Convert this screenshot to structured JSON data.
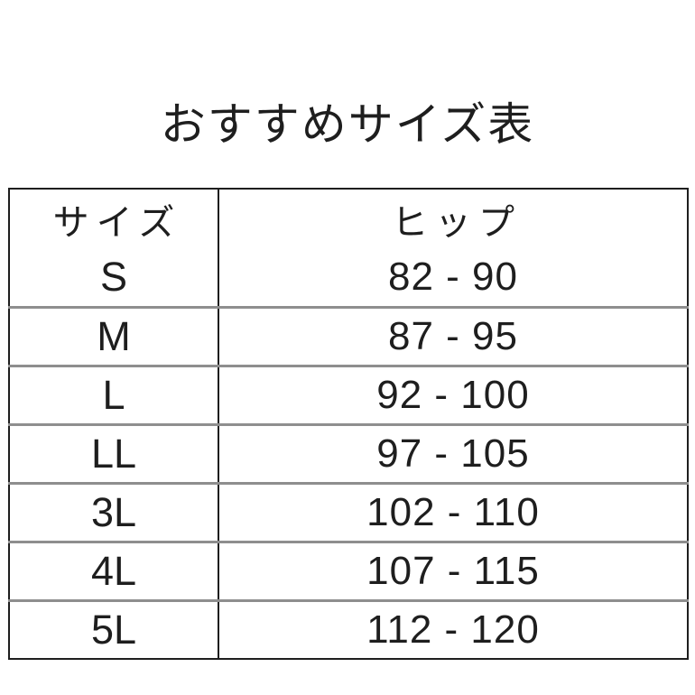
{
  "page": {
    "title": "おすすめサイズ表"
  },
  "table": {
    "columns": [
      {
        "label": "サイズ"
      },
      {
        "label": "ヒップ"
      }
    ],
    "rows": [
      {
        "size": "S",
        "hip": "82 - 90"
      },
      {
        "size": "M",
        "hip": "87 - 95"
      },
      {
        "size": "L",
        "hip": "92 - 100"
      },
      {
        "size": "LL",
        "hip": "97 - 105"
      },
      {
        "size": "3L",
        "hip": "102 - 110"
      },
      {
        "size": "4L",
        "hip": "107 - 115"
      },
      {
        "size": "5L",
        "hip": "112 - 120"
      }
    ]
  },
  "chart_data": {
    "type": "table",
    "title": "おすすめサイズ表",
    "columns": [
      "サイズ",
      "ヒップ"
    ],
    "rows": [
      [
        "S",
        "82 - 90"
      ],
      [
        "M",
        "87 - 95"
      ],
      [
        "L",
        "92 - 100"
      ],
      [
        "LL",
        "97 - 105"
      ],
      [
        "3L",
        "102 - 110"
      ],
      [
        "4L",
        "107 - 115"
      ],
      [
        "5L",
        "112 - 120"
      ]
    ],
    "hip_ranges_numeric": [
      {
        "size": "S",
        "hip_min": 82,
        "hip_max": 90
      },
      {
        "size": "M",
        "hip_min": 87,
        "hip_max": 95
      },
      {
        "size": "L",
        "hip_min": 92,
        "hip_max": 100
      },
      {
        "size": "LL",
        "hip_min": 97,
        "hip_max": 105
      },
      {
        "size": "3L",
        "hip_min": 102,
        "hip_max": 110
      },
      {
        "size": "4L",
        "hip_min": 107,
        "hip_max": 115
      },
      {
        "size": "5L",
        "hip_min": 112,
        "hip_max": 120
      }
    ]
  },
  "colors": {
    "background": "#ffffff",
    "text": "#1e1e1e",
    "outer_border": "#1e1e1e",
    "column_divider": "#1e1e1e",
    "row_divider": "#8e8e8e"
  }
}
